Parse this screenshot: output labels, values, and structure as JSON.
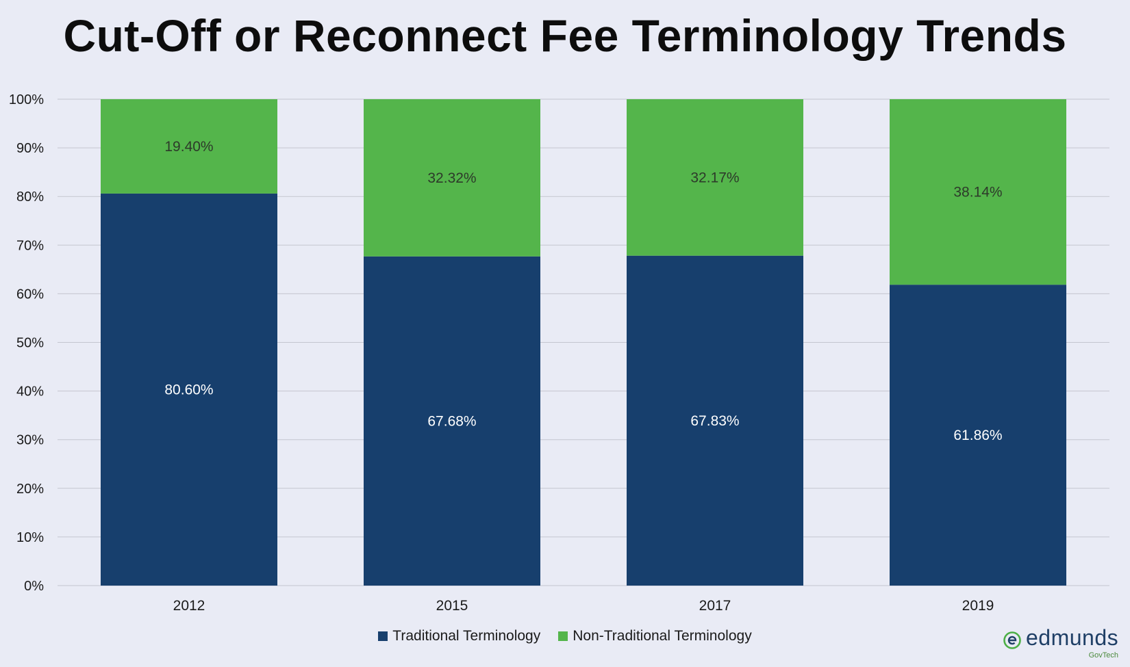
{
  "chart_data": {
    "type": "bar",
    "stacked": true,
    "title": "Cut-Off or Reconnect Fee Terminology Trends",
    "categories": [
      "2012",
      "2015",
      "2017",
      "2019"
    ],
    "series": [
      {
        "name": "Traditional Terminology",
        "color": "#173f6d",
        "values": [
          80.6,
          67.68,
          67.83,
          61.86
        ],
        "labels": [
          "80.60%",
          "67.68%",
          "67.83%",
          "61.86%"
        ]
      },
      {
        "name": "Non-Traditional Terminology",
        "color": "#54b54b",
        "values": [
          19.4,
          32.32,
          32.17,
          38.14
        ],
        "labels": [
          "19.40%",
          "32.32%",
          "32.17%",
          "38.14%"
        ]
      }
    ],
    "ylim": [
      0,
      100
    ],
    "yticks": [
      "0%",
      "10%",
      "20%",
      "30%",
      "40%",
      "50%",
      "60%",
      "70%",
      "80%",
      "90%",
      "100%"
    ],
    "grid": true,
    "legend": "bottom"
  },
  "logo": {
    "name": "edmunds",
    "sub": "GovTech",
    "mark_icon": "edmunds-e-icon"
  }
}
